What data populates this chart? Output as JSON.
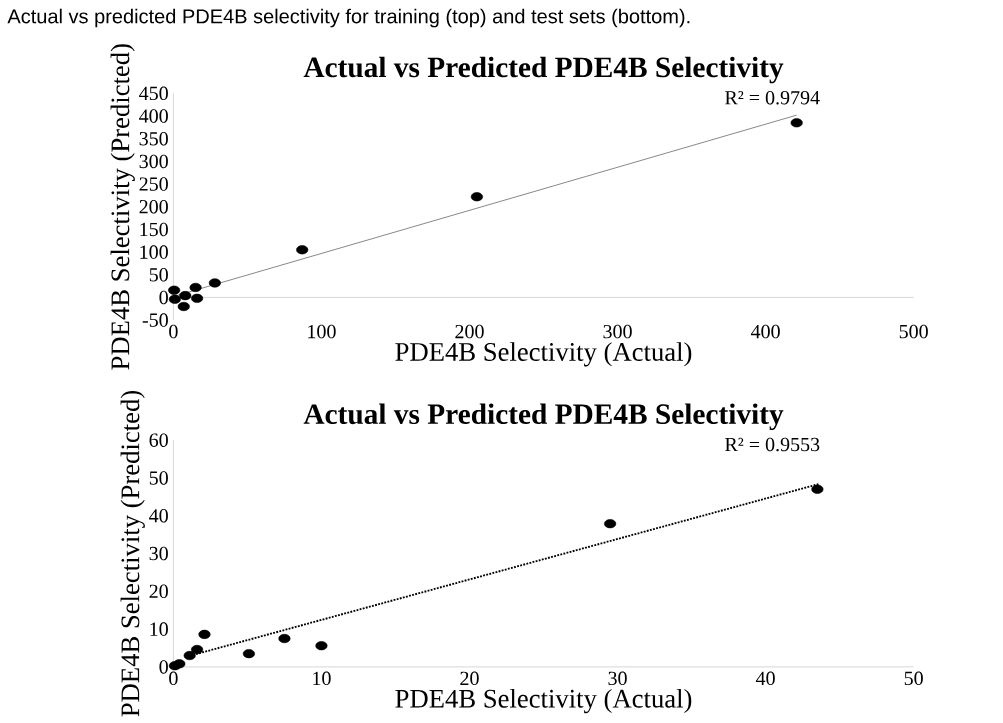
{
  "chart_data": [
    {
      "type": "scatter",
      "title": "Actual vs Predicted PDE4B Selectivity",
      "xlabel": "PDE4B Selectivity (Actual)",
      "ylabel": "PDE4B Selectivity (Predicted)",
      "annotations": [
        "Actual vs predicted PDE4B selectivity for training (top) and test sets (bottom).",
        "R² = 0.9794"
      ],
      "xlim": [
        0,
        500
      ],
      "ylim": [
        -50,
        450
      ],
      "xticks": [
        0,
        100,
        200,
        300,
        400,
        500
      ],
      "yticks": [
        -50,
        0,
        50,
        100,
        150,
        200,
        250,
        300,
        350,
        400,
        450
      ],
      "grid": false,
      "series": [
        {
          "marker": "circle",
          "color": "#000000",
          "x": [
            0.5,
            1,
            7,
            8,
            15,
            16,
            28,
            87,
            205,
            421
          ],
          "values": [
            16,
            -4,
            -20,
            4,
            22,
            -2,
            32,
            105,
            222,
            385
          ]
        },
        {
          "type": "line",
          "marker": "none",
          "color": "#808080",
          "line_style": "solid",
          "x": [
            0,
            421
          ],
          "values": [
            2,
            402
          ]
        }
      ]
    },
    {
      "type": "scatter",
      "title": "Actual vs Predicted PDE4B Selectivity",
      "xlabel": "PDE4B Selectivity (Actual)",
      "ylabel": "PDE4B Selectivity (Predicted)",
      "annotations": [
        "R² = 0.9553"
      ],
      "xlim": [
        0,
        50
      ],
      "ylim": [
        0,
        60
      ],
      "xticks": [
        0,
        10,
        20,
        30,
        40,
        50
      ],
      "yticks": [
        0,
        10,
        20,
        30,
        40,
        50,
        60
      ],
      "grid": false,
      "series": [
        {
          "marker": "circle",
          "color": "#000000",
          "x": [
            0.1,
            0.4,
            1.1,
            1.6,
            2.1,
            5.1,
            7.5,
            10.0,
            29.5,
            43.5
          ],
          "values": [
            0.3,
            0.8,
            3,
            4.6,
            8.6,
            3.5,
            7.5,
            5.6,
            37.9,
            47
          ]
        },
        {
          "type": "line",
          "marker": "none",
          "color": "#000000",
          "line_style": "dotted",
          "x": [
            0.9,
            43.6
          ],
          "values": [
            2.7,
            48.4
          ]
        }
      ]
    }
  ]
}
